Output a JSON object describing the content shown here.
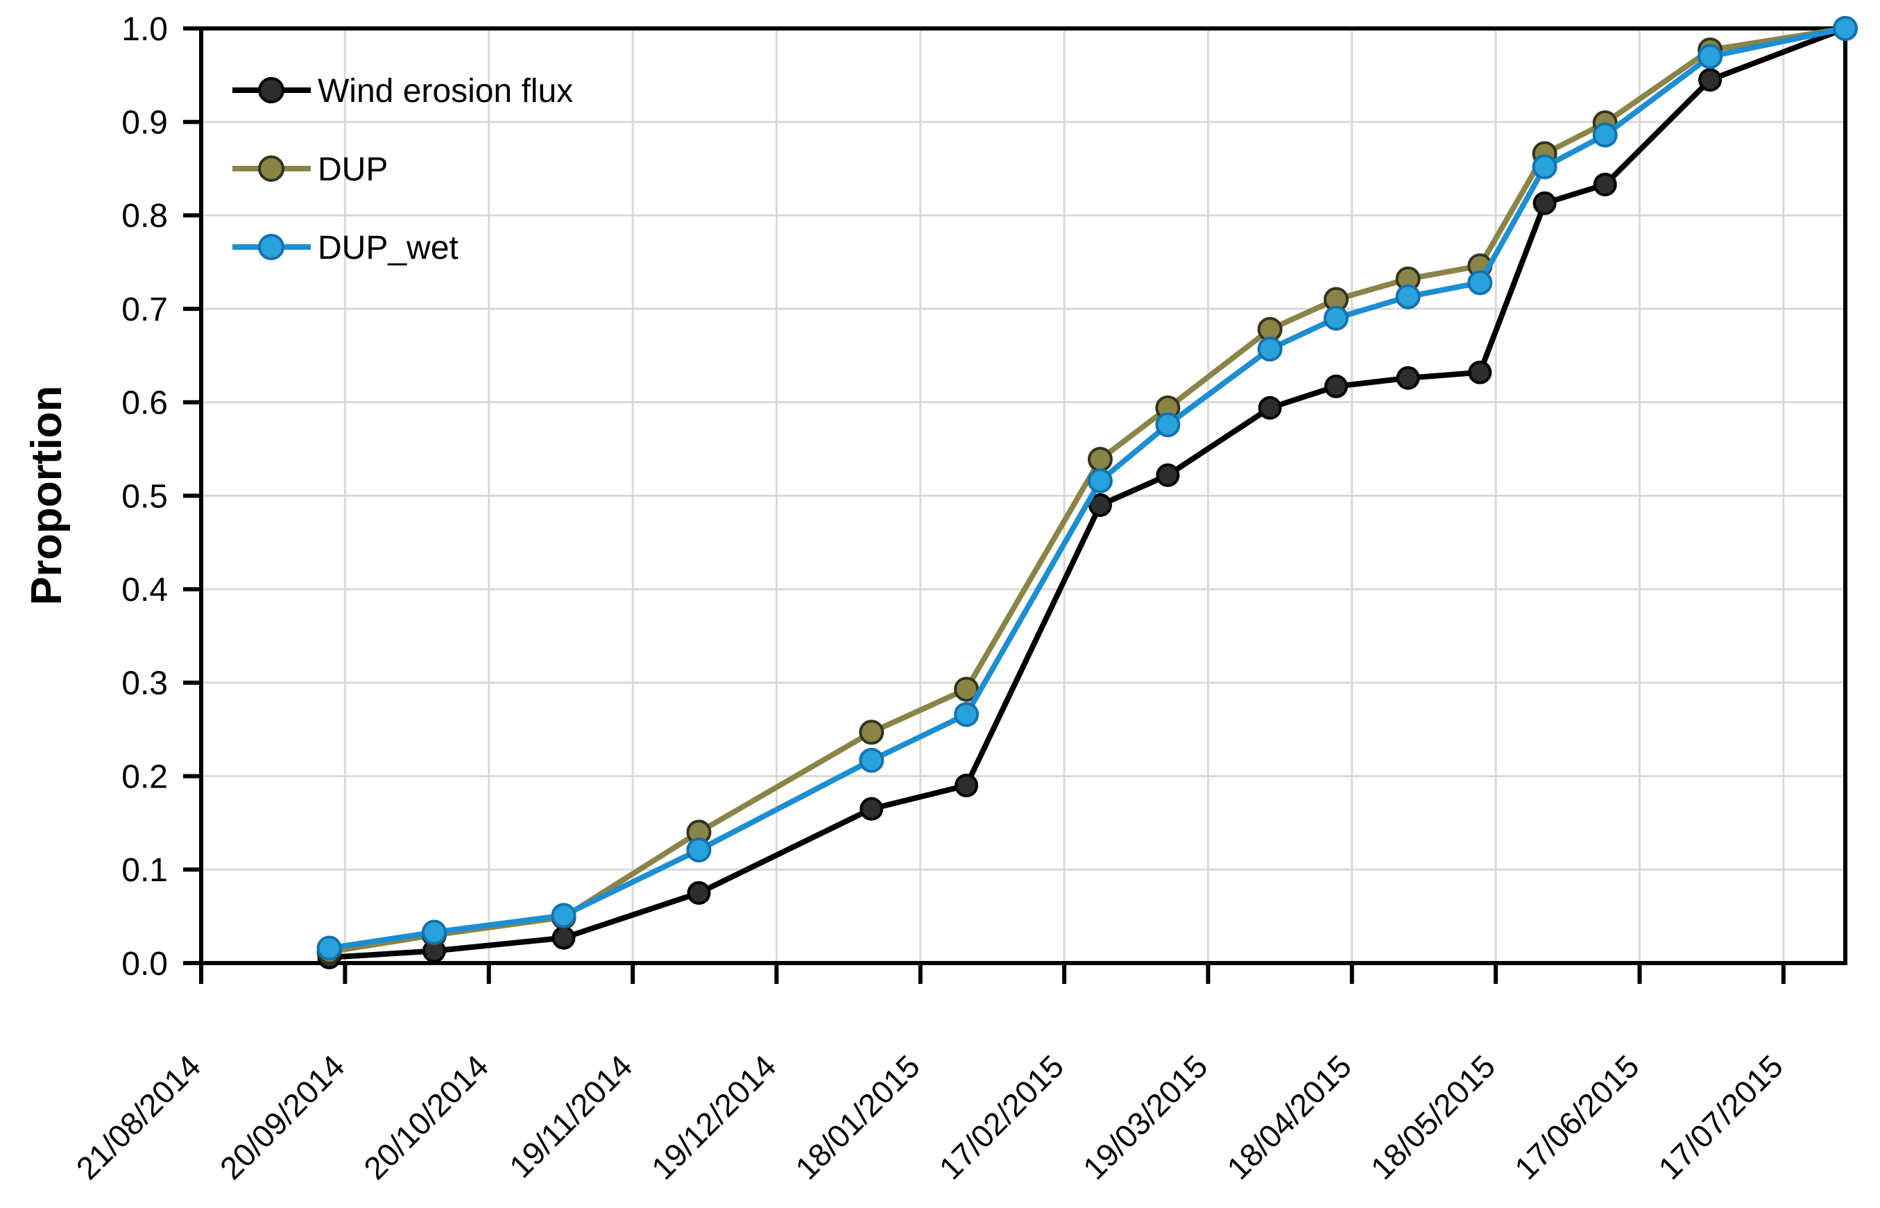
{
  "chart_data": {
    "type": "line",
    "title": "",
    "xlabel": "",
    "ylabel": "Proportion",
    "ylim": [
      0.0,
      1.0
    ],
    "ytick_labels": [
      "0.0",
      "0.1",
      "0.2",
      "0.3",
      "0.4",
      "0.5",
      "0.6",
      "0.7",
      "0.8",
      "0.9",
      "1.0"
    ],
    "xtick_labels": [
      "21/08/2014",
      "20/09/2014",
      "20/10/2014",
      "19/11/2014",
      "19/12/2014",
      "18/01/2015",
      "17/02/2015",
      "19/03/2015",
      "18/04/2015",
      "18/05/2015",
      "17/06/2015",
      "17/07/2015"
    ],
    "x_max_units": 11.43,
    "x_units": [
      0.89,
      1.62,
      2.52,
      3.46,
      4.66,
      5.32,
      6.25,
      6.72,
      7.43,
      7.89,
      8.39,
      8.89,
      9.34,
      9.76,
      10.49,
      11.43
    ],
    "grid": true,
    "legend_position": "top-left-inside",
    "series": [
      {
        "name": "Wind erosion flux",
        "line_color": "#000000",
        "marker_fill": "#2d2d2d",
        "marker_stroke": "#000000",
        "values": [
          0.006,
          0.013,
          0.027,
          0.075,
          0.165,
          0.19,
          0.49,
          0.522,
          0.594,
          0.617,
          0.626,
          0.632,
          0.813,
          0.833,
          0.945,
          1.0
        ]
      },
      {
        "name": "DUP",
        "line_color": "#8a8447",
        "marker_fill": "#8a8447",
        "marker_stroke": "#35331f",
        "values": [
          0.012,
          0.03,
          0.049,
          0.14,
          0.247,
          0.293,
          0.539,
          0.594,
          0.678,
          0.71,
          0.732,
          0.746,
          0.866,
          0.899,
          0.977,
          1.0
        ]
      },
      {
        "name": "DUP_wet",
        "line_color": "#1d8ed2",
        "marker_fill": "#29a2dc",
        "marker_stroke": "#1472ae",
        "values": [
          0.016,
          0.033,
          0.051,
          0.121,
          0.217,
          0.266,
          0.516,
          0.576,
          0.657,
          0.69,
          0.713,
          0.728,
          0.852,
          0.886,
          0.97,
          1.0
        ]
      }
    ],
    "colors": {
      "gridline": "#d9d9d9",
      "axis": "#000000",
      "background": "#ffffff"
    }
  }
}
